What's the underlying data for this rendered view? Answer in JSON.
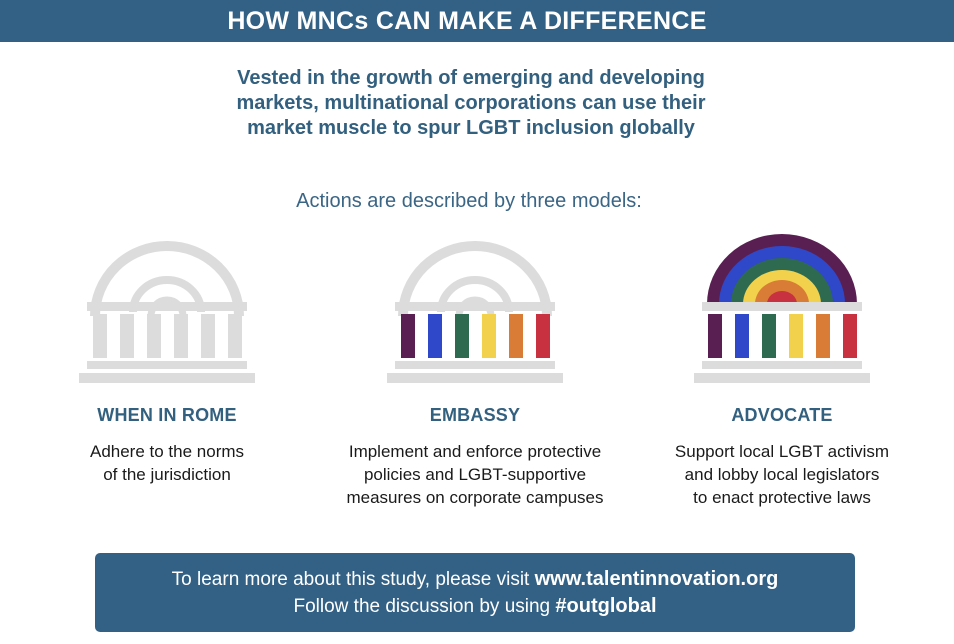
{
  "header": {
    "title": "HOW MNCs CAN MAKE A DIFFERENCE"
  },
  "lead": {
    "lines": [
      "Vested in the growth of emerging and developing",
      "markets, multinational corporations can use their",
      "market muscle to spur LGBT inclusion globally"
    ]
  },
  "subhead": "Actions are described by three models:",
  "colors": {
    "brand_blue": "#336185",
    "building_gray": "#dcdcdc",
    "rainbow": [
      "#5a1f52",
      "#2f48c9",
      "#2e6a4f",
      "#f2d14c",
      "#d97c35",
      "#c8313f"
    ]
  },
  "models": [
    {
      "name": "WHEN IN ROME",
      "icon": "gray-building-icon",
      "desc": [
        "Adhere to the norms",
        "of the jurisdiction"
      ]
    },
    {
      "name": "EMBASSY",
      "icon": "rainbow-columns-building-icon",
      "desc": [
        "Implement and enforce protective",
        "policies and LGBT-supportive",
        "measures on corporate campuses"
      ]
    },
    {
      "name": "ADVOCATE",
      "icon": "rainbow-building-icon",
      "desc": [
        "Support local LGBT activism",
        "and lobby local legislators",
        "to enact protective laws"
      ]
    }
  ],
  "footer": {
    "line1_text": "To learn more about this study, please visit ",
    "line1_link": "www.talentinnovation.org",
    "line2_text": "Follow the discussion by using ",
    "line2_tag": "#outglobal"
  }
}
